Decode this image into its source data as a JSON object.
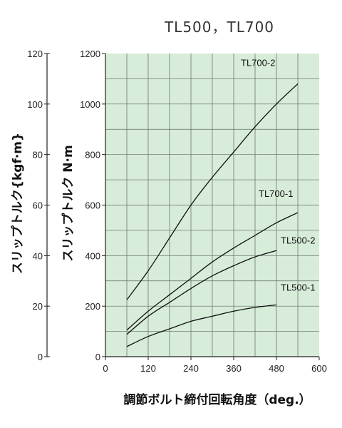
{
  "chart_data": {
    "type": "line",
    "title": "TL500，TL700",
    "xlabel": "調節ボルト締付回転角度（deg.）",
    "ylabel": "スリップトルク N·m",
    "y2label": "スリップトルク{kgf·m}",
    "xlim": [
      0,
      600
    ],
    "ylim": [
      0,
      1200
    ],
    "y2lim": [
      0,
      120
    ],
    "x_ticks": [
      "0",
      "120",
      "240",
      "360",
      "480",
      "600"
    ],
    "y_ticks": [
      "0",
      "200",
      "400",
      "600",
      "800",
      "1000",
      "1200"
    ],
    "y2_ticks": [
      "0",
      "20",
      "40",
      "60",
      "80",
      "100",
      "120"
    ],
    "grid": true,
    "series": [
      {
        "name": "TL700-2",
        "x": [
          60,
          120,
          180,
          240,
          300,
          360,
          420,
          480,
          540
        ],
        "y": [
          225,
          340,
          470,
          600,
          710,
          810,
          910,
          1000,
          1080
        ]
      },
      {
        "name": "TL700-1",
        "x": [
          60,
          120,
          180,
          240,
          300,
          360,
          420,
          480,
          540
        ],
        "y": [
          105,
          180,
          245,
          310,
          375,
          430,
          480,
          530,
          570
        ]
      },
      {
        "name": "TL500-2",
        "x": [
          60,
          120,
          180,
          240,
          300,
          360,
          420,
          480
        ],
        "y": [
          88,
          160,
          215,
          270,
          320,
          360,
          395,
          420
        ]
      },
      {
        "name": "TL500-1",
        "x": [
          60,
          120,
          180,
          240,
          300,
          360,
          420,
          480
        ],
        "y": [
          40,
          80,
          110,
          140,
          160,
          180,
          195,
          205
        ]
      }
    ]
  }
}
